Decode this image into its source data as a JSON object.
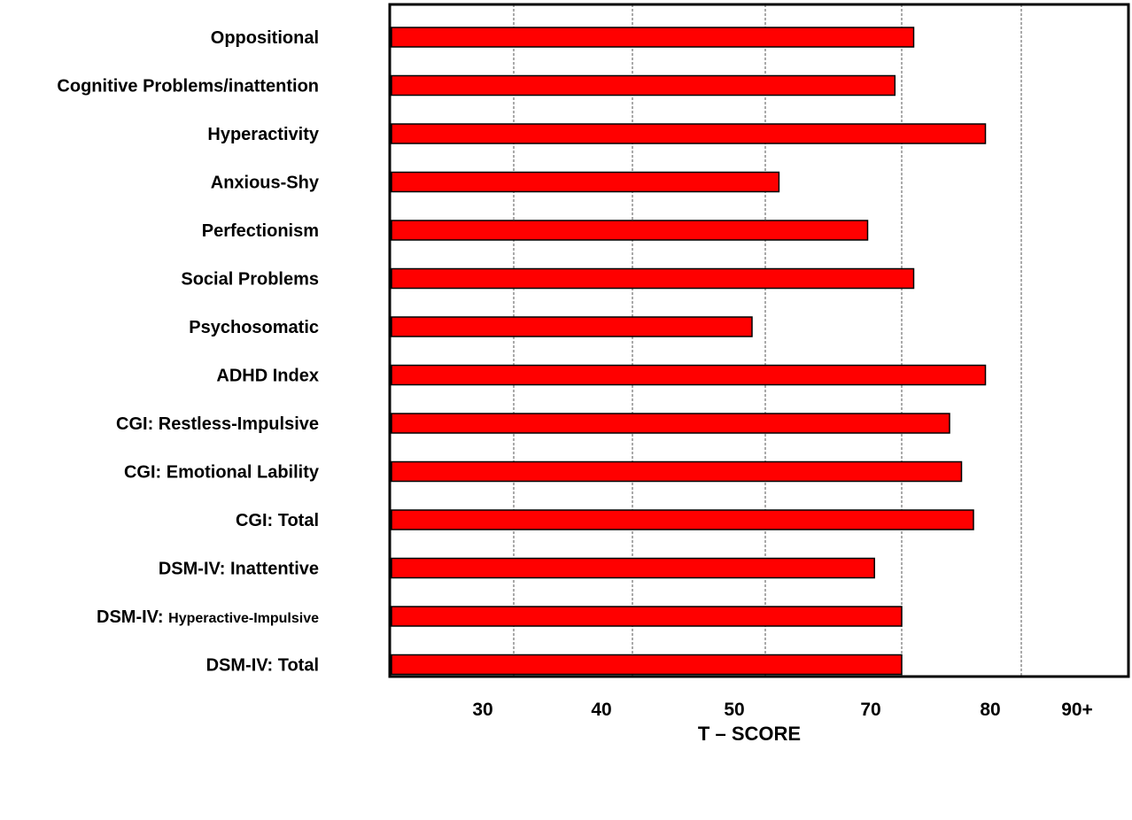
{
  "chart_data": {
    "type": "bar",
    "orientation": "horizontal",
    "title": "",
    "xlabel": "T – SCORE",
    "ylabel": "",
    "categories": [
      {
        "label": "Oppositional"
      },
      {
        "label": "Cognitive Problems/inattention"
      },
      {
        "label": "Hyperactivity"
      },
      {
        "label": "Anxious-Shy"
      },
      {
        "label": "Perfectionism"
      },
      {
        "label": "Social Problems"
      },
      {
        "label": "Psychosomatic"
      },
      {
        "label": "ADHD Index"
      },
      {
        "label": "CGI: Restless-Impulsive"
      },
      {
        "label": "CGI: Emotional Lability"
      },
      {
        "label": "CGI: Total"
      },
      {
        "label": "DSM-IV: Inattentive"
      },
      {
        "label": "DSM-IV: ",
        "label_small": "Hyperactive-Impulsive"
      },
      {
        "label": "DSM-IV: Total"
      }
    ],
    "values": [
      71,
      69,
      77,
      52,
      65,
      71,
      49,
      77,
      74,
      75,
      76,
      66,
      70,
      70
    ],
    "tick_labels": [
      "30",
      "40",
      "50",
      "70",
      "80",
      "90+"
    ],
    "bar_color": "#ff0000",
    "bar_outline": "#000000",
    "grid": "vertical dashed"
  }
}
